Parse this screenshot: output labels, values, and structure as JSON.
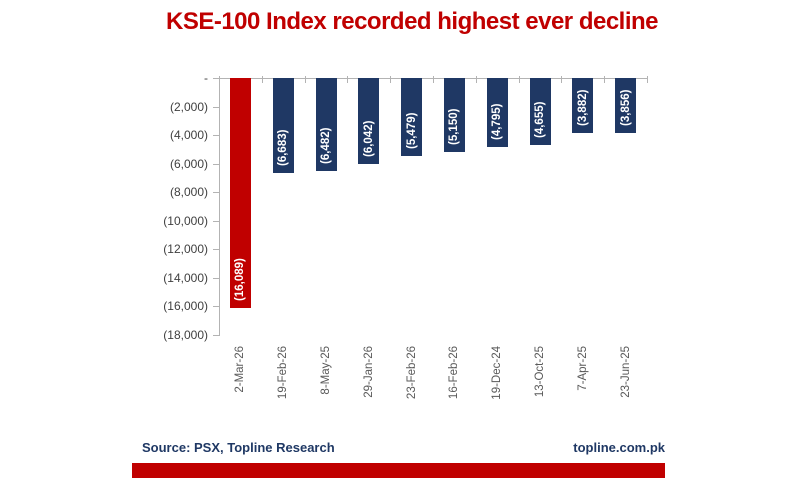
{
  "title": "KSE-100 Index recorded highest ever decline",
  "footer": {
    "source": "Source: PSX, Topline Research",
    "website": "topline.com.pk"
  },
  "colors": {
    "title_red": "#C00000",
    "highlight_bar_red": "#C00000",
    "bar_navy": "#1F3864",
    "axis_gray": "#B3B3B3",
    "ytick_label_color": "#404040",
    "xtick_label_color": "#595959",
    "value_label_color": "#FFFFFF",
    "footer_navy": "#1F3864",
    "footer_strip_red": "#C00000"
  },
  "chart_data": {
    "type": "bar",
    "orientation": "columns-hanging-from-zero",
    "title": "KSE-100 Index recorded highest ever decline",
    "xlabel": "",
    "ylabel": "",
    "categories": [
      "2-Mar-26",
      "19-Feb-26",
      "8-May-25",
      "29-Jan-26",
      "23-Feb-26",
      "16-Feb-26",
      "19-Dec-24",
      "13-Oct-25",
      "7-Apr-25",
      "23-Jun-25"
    ],
    "values": [
      -16089,
      -6683,
      -6482,
      -6042,
      -5479,
      -5150,
      -4795,
      -4655,
      -3882,
      -3856
    ],
    "data_labels": [
      "(16,089)",
      "(6,683)",
      "(6,482)",
      "(6,042)",
      "(5,479)",
      "(5,150)",
      "(4,795)",
      "(4,655)",
      "(3,882)",
      "(3,856)"
    ],
    "bar_colors": [
      "#C00000",
      "#1F3864",
      "#1F3864",
      "#1F3864",
      "#1F3864",
      "#1F3864",
      "#1F3864",
      "#1F3864",
      "#1F3864",
      "#1F3864"
    ],
    "ylim": [
      -18000,
      0
    ],
    "ytick_step": 2000,
    "ytick_labels": [
      "-",
      "(2,000)",
      "(4,000)",
      "(6,000)",
      "(8,000)",
      "(10,000)",
      "(12,000)",
      "(14,000)",
      "(16,000)",
      "(18,000)"
    ],
    "grid": false,
    "legend": "none"
  }
}
